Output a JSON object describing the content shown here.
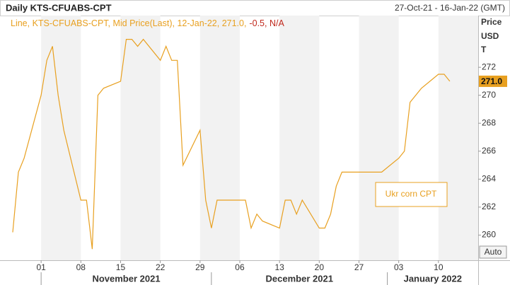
{
  "chart_data": {
    "type": "line",
    "title": "Daily KTS-CFUABS-CPT",
    "subtitle": "27-Oct-21 - 16-Jan-22 (GMT)",
    "legend": {
      "text": "Line, KTS-CFUABS-CPT, Mid Price(Last), 12-Jan-22, 271.0,",
      "change": "-0.5, N/A"
    },
    "y_axis_label_lines": [
      "Price",
      "USD",
      "T"
    ],
    "auto_button": "Auto",
    "annotation": "Ukr corn CPT",
    "x": [
      "2021-10-27",
      "2021-10-28",
      "2021-10-29",
      "2021-11-01",
      "2021-11-02",
      "2021-11-03",
      "2021-11-04",
      "2021-11-05",
      "2021-11-08",
      "2021-11-09",
      "2021-11-10",
      "2021-11-11",
      "2021-11-12",
      "2021-11-15",
      "2021-11-16",
      "2021-11-17",
      "2021-11-18",
      "2021-11-19",
      "2021-11-22",
      "2021-11-23",
      "2021-11-24",
      "2021-11-25",
      "2021-11-26",
      "2021-11-29",
      "2021-11-30",
      "2021-12-01",
      "2021-12-02",
      "2021-12-03",
      "2021-12-06",
      "2021-12-07",
      "2021-12-08",
      "2021-12-09",
      "2021-12-10",
      "2021-12-13",
      "2021-12-14",
      "2021-12-15",
      "2021-12-16",
      "2021-12-17",
      "2021-12-20",
      "2021-12-21",
      "2021-12-22",
      "2021-12-23",
      "2021-12-24",
      "2021-12-27",
      "2021-12-28",
      "2021-12-29",
      "2021-12-30",
      "2021-12-31",
      "2022-01-03",
      "2022-01-04",
      "2022-01-05",
      "2022-01-06",
      "2022-01-07",
      "2022-01-10",
      "2022-01-11",
      "2022-01-12"
    ],
    "series": [
      {
        "name": "KTS-CFUABS-CPT",
        "color": "#e8a020",
        "values": [
          260.2,
          264.5,
          265.5,
          270,
          272.5,
          273.5,
          270,
          267.5,
          262.5,
          262.5,
          259,
          270,
          270.5,
          271,
          274,
          274,
          273.5,
          274,
          272.5,
          273.5,
          272.5,
          272.5,
          265,
          267.5,
          262.5,
          260.5,
          262.5,
          262.5,
          262.5,
          262.5,
          260.5,
          261.5,
          261,
          260.5,
          262.5,
          262.5,
          261.5,
          262.5,
          260.5,
          260.5,
          261.5,
          263.5,
          264.5,
          264.5,
          264.5,
          264.5,
          264.5,
          264.5,
          265.5,
          266,
          269.5,
          270,
          270.5,
          271.5,
          271.5,
          271.0
        ],
        "last_value_label": "271.0"
      }
    ],
    "xlim": [
      "2021-10-26",
      "2022-01-17"
    ],
    "xticks": [
      {
        "value": "2021-11-01",
        "label": "01"
      },
      {
        "value": "2021-11-08",
        "label": "08"
      },
      {
        "value": "2021-11-15",
        "label": "15"
      },
      {
        "value": "2021-11-22",
        "label": "22"
      },
      {
        "value": "2021-11-29",
        "label": "29"
      },
      {
        "value": "2021-12-06",
        "label": "06"
      },
      {
        "value": "2021-12-13",
        "label": "13"
      },
      {
        "value": "2021-12-20",
        "label": "20"
      },
      {
        "value": "2021-12-27",
        "label": "27"
      },
      {
        "value": "2022-01-03",
        "label": "03"
      },
      {
        "value": "2022-01-10",
        "label": "10"
      }
    ],
    "xmonths": [
      {
        "value": "2021-11-01",
        "label": "November 2021"
      },
      {
        "value": "2021-12-01",
        "label": "December 2021"
      },
      {
        "value": "2022-01-01",
        "label": "January 2022"
      }
    ],
    "ylim": [
      258.2,
      275.7
    ],
    "yticks": [
      260,
      262,
      264,
      266,
      268,
      270,
      272
    ],
    "grid": false
  }
}
